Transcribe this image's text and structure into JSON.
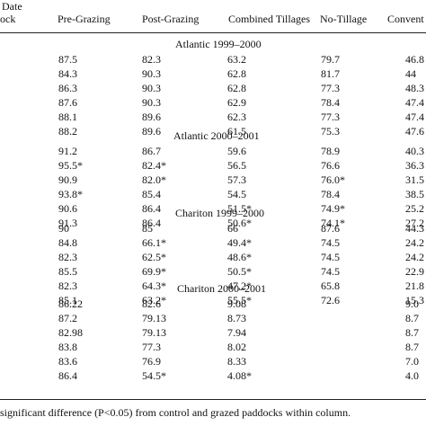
{
  "table": {
    "header": {
      "date_label": "Date",
      "paddock_label": "ock",
      "columns": [
        "Pre-Grazing",
        "Post-Grazing",
        "Combined Tillages",
        "No-Tillage",
        "Convent"
      ]
    },
    "sections": [
      {
        "title": "Atlantic 1999–2000",
        "rows": [
          [
            "87.5",
            "82.3",
            "63.2",
            "79.7",
            "46.8"
          ],
          [
            "84.3",
            "90.3",
            "62.8",
            "81.7",
            "44"
          ],
          [
            "86.3",
            "90.3",
            "62.8",
            "77.3",
            "48.3"
          ],
          [
            "87.6",
            "90.3",
            "62.9",
            "78.4",
            "47.4"
          ],
          [
            "88.1",
            "89.6",
            "62.3",
            "77.3",
            "47.4"
          ],
          [
            "88.2",
            "89.6",
            "61.5",
            "75.3",
            "47.6"
          ]
        ]
      },
      {
        "title": "Atlantic 2000–2001",
        "rows": [
          [
            "91.2",
            "86.7",
            "59.6",
            "78.9",
            "40.3"
          ],
          [
            "95.5*",
            "82.4*",
            "56.5",
            "76.6",
            "36.3"
          ],
          [
            "90.9",
            "82.0*",
            "57.3",
            "76.0*",
            "31.5"
          ],
          [
            "93.8*",
            "85.4",
            "54.5",
            "78.4",
            "38.5"
          ],
          [
            "90.6",
            "86.4",
            "51.5*",
            "74.9*",
            "25.2"
          ],
          [
            "91.3",
            "86.4",
            "50.6*",
            "74.1*",
            "27.2"
          ]
        ]
      },
      {
        "title": "Chariton 1999–2000",
        "rows": [
          [
            "90",
            "85",
            "66",
            "87.6",
            "44.3"
          ],
          [
            "84.8",
            "66.1*",
            "49.4*",
            "74.5",
            "24.2"
          ],
          [
            "82.3",
            "62.5*",
            "48.6*",
            "74.5",
            "24.2"
          ],
          [
            "85.5",
            "69.9*",
            "50.5*",
            "74.5",
            "22.9"
          ],
          [
            "82.3",
            "64.3*",
            "47.2*",
            "65.8",
            "21.8"
          ],
          [
            "85.1",
            "63.2*",
            "55.5*",
            "72.6",
            "15.3"
          ]
        ]
      },
      {
        "title": "Chariton 2000–2001",
        "rows": [
          [
            "86.22",
            "82.6",
            "9.08",
            "",
            "9.0"
          ],
          [
            "87.2",
            "79.13",
            "8.73",
            "",
            "8.7"
          ],
          [
            "82.98",
            "79.13",
            "7.94",
            "",
            "8.7"
          ],
          [
            "83.8",
            "77.3",
            "8.02",
            "",
            "8.7"
          ],
          [
            "83.6",
            "76.9",
            "8.33",
            "",
            "7.0"
          ],
          [
            "86.4",
            "54.5*",
            "4.08*",
            "",
            "4.0"
          ]
        ]
      }
    ],
    "footnote": "significant difference (P<0.05) from control and grazed paddocks within column."
  }
}
